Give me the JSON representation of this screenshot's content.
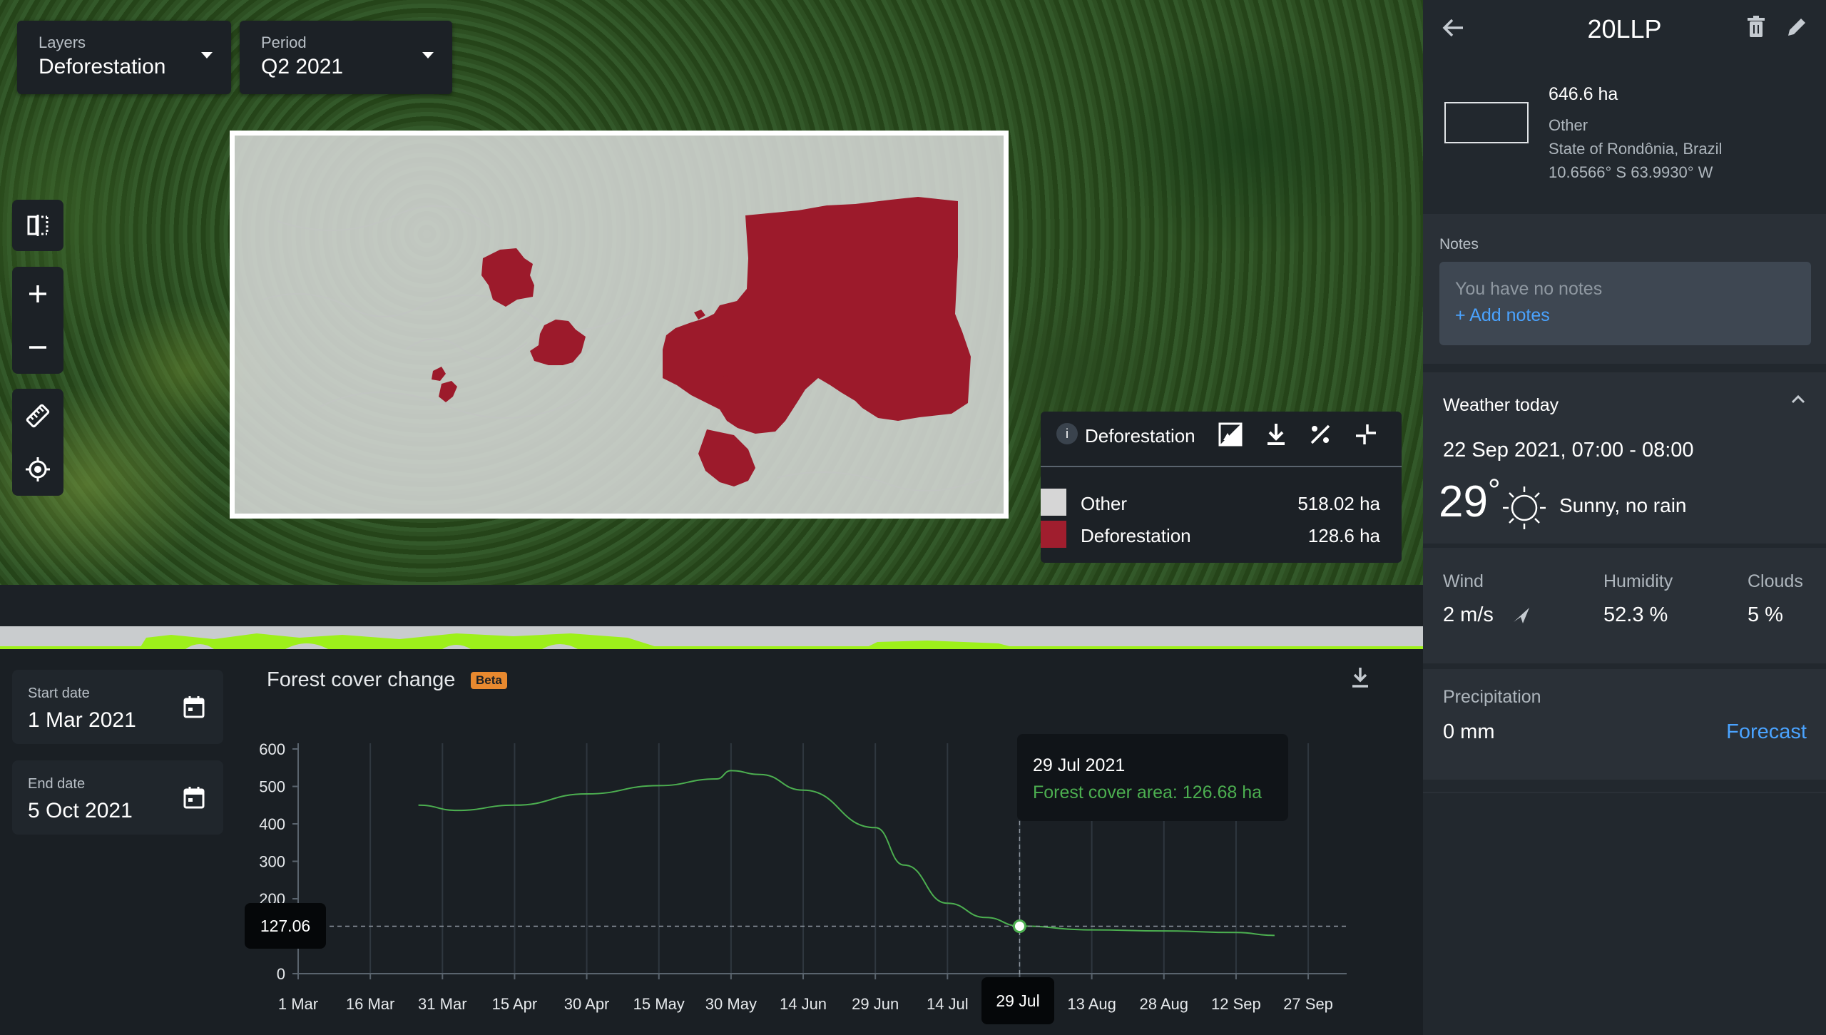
{
  "map": {
    "layers": {
      "label": "Layers",
      "value": "Deforestation"
    },
    "period": {
      "label": "Period",
      "value": "Q2 2021"
    },
    "legend": {
      "title": "Deforestation",
      "items": [
        {
          "name": "Other",
          "value": "518.02 ha",
          "color": "#d6d6d6"
        },
        {
          "name": "Deforestation",
          "value": "128.6 ha",
          "color": "#a01e2e"
        }
      ]
    }
  },
  "chart": {
    "title": "Forest cover change",
    "badge": "Beta",
    "start_date": {
      "label": "Start date",
      "value": "1 Mar 2021"
    },
    "end_date": {
      "label": "End date",
      "value": "5 Oct 2021"
    },
    "tooltip": {
      "date": "29 Jul 2021",
      "value_text": "Forest cover area: 126.68 ha"
    },
    "crosshair": {
      "y_label": "127.06",
      "x_label": "29 Jul"
    }
  },
  "chart_data": {
    "type": "line",
    "title": "Forest cover change",
    "x_ticks": [
      "1 Mar",
      "16 Mar",
      "31 Mar",
      "15 Apr",
      "30 Apr",
      "15 May",
      "30 May",
      "14 Jun",
      "29 Jun",
      "14 Jul",
      "29 Jul",
      "13 Aug",
      "28 Aug",
      "12 Sep",
      "27 Sep"
    ],
    "y_ticks": [
      0,
      100,
      200,
      300,
      400,
      500,
      600
    ],
    "y_tick_labels": [
      "0",
      "",
      "200",
      "300",
      "400",
      "500",
      "600"
    ],
    "ylim": [
      0,
      600
    ],
    "xlim": [
      "2021-03-01",
      "2021-10-05"
    ],
    "grid": true,
    "series": [
      {
        "color": "#4caf50",
        "x": [
          "2021-03-26",
          "2021-04-03",
          "2021-04-15",
          "2021-04-30",
          "2021-05-15",
          "2021-05-27",
          "2021-05-30",
          "2021-06-05",
          "2021-06-14",
          "2021-06-29",
          "2021-07-05",
          "2021-07-14",
          "2021-07-22",
          "2021-07-29",
          "2021-08-13",
          "2021-08-28",
          "2021-09-12",
          "2021-09-20"
        ],
        "y": [
          450,
          436,
          450,
          480,
          502,
          520,
          542,
          532,
          490,
          390,
          290,
          188,
          150,
          127,
          117,
          114,
          110,
          102
        ]
      }
    ],
    "highlight": {
      "x": "2021-07-29",
      "y": 126.68
    }
  },
  "panel": {
    "title": "20LLP",
    "area": "646.6 ha",
    "category": "Other",
    "location": "State of Rondônia, Brazil",
    "coords": "10.6566° S 63.9930° W",
    "notes_label": "Notes",
    "notes_empty": "You have no notes",
    "add_notes": "+ Add notes",
    "weather": {
      "title": "Weather today",
      "datetime": "22 Sep 2021, 07:00 - 08:00",
      "temp": "29",
      "temp_unit": "°",
      "condition": "Sunny, no rain",
      "wind_label": "Wind",
      "wind": "2 m/s",
      "humidity_label": "Humidity",
      "humidity": "52.3 %",
      "clouds_label": "Clouds",
      "clouds": "5 %",
      "precip_label": "Precipitation",
      "precip": "0 mm",
      "forecast": "Forecast"
    }
  },
  "colors": {
    "accent": "#4aa3ff",
    "line": "#4caf50",
    "deforestation": "#a01e2e",
    "beta": "#e8892f"
  }
}
